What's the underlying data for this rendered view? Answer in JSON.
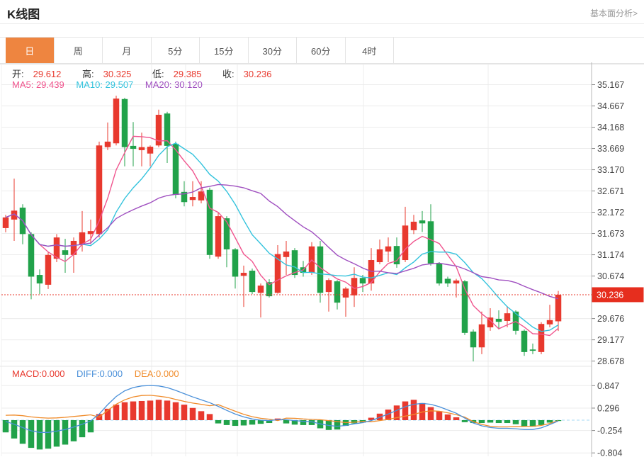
{
  "header": {
    "title": "K线图",
    "link": "基本面分析>"
  },
  "tabs": {
    "items": [
      "日",
      "周",
      "月",
      "5分",
      "15分",
      "30分",
      "60分",
      "4时"
    ],
    "selected": "日",
    "selected_index": 0
  },
  "legend": {
    "open_label": "开:",
    "open_value": "29.612",
    "high_label": "高:",
    "high_value": "30.325",
    "low_label": "低:",
    "low_value": "29.385",
    "close_label": "收:",
    "close_value": "30.236",
    "ma5": "MA5: 29.439",
    "ma10": "MA10: 29.507",
    "ma20": "MA20: 30.120"
  },
  "macd_legend": {
    "macd": "MACD:0.000",
    "diff": "DIFF:0.000",
    "dea": "DEA:0.000"
  },
  "axes": {
    "price_ticks": [
      35.167,
      34.667,
      34.168,
      33.669,
      33.17,
      32.671,
      32.172,
      31.673,
      31.174,
      30.674,
      29.676,
      29.177,
      28.678
    ],
    "current_price": "30.236",
    "macd_ticks": [
      "0.847",
      "0.296",
      "-0.254",
      "-0.804"
    ]
  },
  "colors": {
    "up": "#e8392e",
    "down": "#21a24a",
    "ma5": "#f0558e",
    "ma10": "#33c3dd",
    "ma20": "#a050c0",
    "diff": "#4a90d9",
    "dea": "#f08c2b",
    "tab_accent": "#ee8540",
    "badge": "#e62e1e",
    "grid": "#ececec",
    "axis_border": "#b8b8b8",
    "tick_text": "#444444",
    "zero_dash": "#a6d8f5"
  },
  "chart_data": {
    "type": "candlestick",
    "title": "K线图 (daily)",
    "legend_position": "top-left",
    "grid": true,
    "price_range": [
      28.678,
      35.167
    ],
    "macd_range": [
      -0.804,
      0.847
    ],
    "v_gridlines": [
      214,
      262,
      335,
      513,
      689
    ],
    "ohlc": [
      [
        31.8,
        32.11,
        31.7,
        32.05
      ],
      [
        32.0,
        32.96,
        31.5,
        32.21
      ],
      [
        32.28,
        32.36,
        31.42,
        31.66
      ],
      [
        31.66,
        31.7,
        30.13,
        30.66
      ],
      [
        30.7,
        30.83,
        30.25,
        30.5
      ],
      [
        30.47,
        31.25,
        30.37,
        31.17
      ],
      [
        31.08,
        31.66,
        31.0,
        31.58
      ],
      [
        31.28,
        31.55,
        30.75,
        31.17
      ],
      [
        31.17,
        31.58,
        30.75,
        31.5
      ],
      [
        31.42,
        32.2,
        31.25,
        31.7
      ],
      [
        31.66,
        32.0,
        31.42,
        31.73
      ],
      [
        31.66,
        33.83,
        31.58,
        33.74
      ],
      [
        33.7,
        34.28,
        33.63,
        33.83
      ],
      [
        33.79,
        34.91,
        33.74,
        34.84
      ],
      [
        34.83,
        34.86,
        33.25,
        33.7
      ],
      [
        33.73,
        34.29,
        33.25,
        33.66
      ],
      [
        33.63,
        34.04,
        33.25,
        33.7
      ],
      [
        33.55,
        33.74,
        33.25,
        33.71
      ],
      [
        33.74,
        34.58,
        33.7,
        34.46
      ],
      [
        34.49,
        34.53,
        33.33,
        33.73
      ],
      [
        33.78,
        33.83,
        32.5,
        32.58
      ],
      [
        32.65,
        32.9,
        32.31,
        32.41
      ],
      [
        32.46,
        32.9,
        32.31,
        32.53
      ],
      [
        32.45,
        32.9,
        32.38,
        32.66
      ],
      [
        32.7,
        32.75,
        31.08,
        31.17
      ],
      [
        31.13,
        32.16,
        31.08,
        32.08
      ],
      [
        32.03,
        32.08,
        30.88,
        31.3
      ],
      [
        31.3,
        31.33,
        30.38,
        30.66
      ],
      [
        30.68,
        30.92,
        29.95,
        30.75
      ],
      [
        30.8,
        30.85,
        30.25,
        30.3
      ],
      [
        30.28,
        30.5,
        29.7,
        30.45
      ],
      [
        30.53,
        30.6,
        30.17,
        30.2
      ],
      [
        30.28,
        31.4,
        30.26,
        31.19
      ],
      [
        31.12,
        31.5,
        30.7,
        31.25
      ],
      [
        31.28,
        31.33,
        30.63,
        30.7
      ],
      [
        30.88,
        31.03,
        30.66,
        30.75
      ],
      [
        30.75,
        31.47,
        30.7,
        31.37
      ],
      [
        31.37,
        31.5,
        30.05,
        30.28
      ],
      [
        30.3,
        30.62,
        29.84,
        30.58
      ],
      [
        30.55,
        30.58,
        29.89,
        30.05
      ],
      [
        30.17,
        30.42,
        29.72,
        30.38
      ],
      [
        30.22,
        30.88,
        29.95,
        30.63
      ],
      [
        30.63,
        30.7,
        30.3,
        30.5
      ],
      [
        30.5,
        31.33,
        30.33,
        31.05
      ],
      [
        31.0,
        31.53,
        30.95,
        31.3
      ],
      [
        31.25,
        31.58,
        31.0,
        31.37
      ],
      [
        31.38,
        31.58,
        30.87,
        30.95
      ],
      [
        31.05,
        32.3,
        31.0,
        31.86
      ],
      [
        31.75,
        32.11,
        31.66,
        31.95
      ],
      [
        31.98,
        32.2,
        31.71,
        31.91
      ],
      [
        31.96,
        32.36,
        30.92,
        30.97
      ],
      [
        30.97,
        31.0,
        30.45,
        30.5
      ],
      [
        30.61,
        30.66,
        30.42,
        30.5
      ],
      [
        30.5,
        30.61,
        30.17,
        30.57
      ],
      [
        30.55,
        30.58,
        29.29,
        29.34
      ],
      [
        29.37,
        29.42,
        28.67,
        29.0
      ],
      [
        29.0,
        29.84,
        28.84,
        29.54
      ],
      [
        29.47,
        29.92,
        29.39,
        29.7
      ],
      [
        29.67,
        29.87,
        29.42,
        29.6
      ],
      [
        29.62,
        29.97,
        29.47,
        29.8
      ],
      [
        29.84,
        29.87,
        29.3,
        29.39
      ],
      [
        29.39,
        29.42,
        28.8,
        28.89
      ],
      [
        28.95,
        29.09,
        28.84,
        28.92
      ],
      [
        28.89,
        29.59,
        28.84,
        29.55
      ],
      [
        29.54,
        30.0,
        29.47,
        29.64
      ],
      [
        29.612,
        30.325,
        29.385,
        30.236
      ]
    ],
    "ma_periods": [
      5,
      10,
      20
    ],
    "macd_diff": [
      -0.03,
      -0.1,
      -0.18,
      -0.26,
      -0.3,
      -0.3,
      -0.27,
      -0.23,
      -0.17,
      -0.1,
      -0.02,
      0.15,
      0.38,
      0.58,
      0.72,
      0.8,
      0.84,
      0.85,
      0.84,
      0.8,
      0.73,
      0.65,
      0.57,
      0.5,
      0.43,
      0.34,
      0.24,
      0.15,
      0.08,
      0.03,
      0.0,
      -0.01,
      0.01,
      0.01,
      -0.01,
      -0.03,
      -0.04,
      -0.09,
      -0.13,
      -0.15,
      -0.13,
      -0.09,
      -0.06,
      -0.01,
      0.07,
      0.15,
      0.24,
      0.33,
      0.39,
      0.41,
      0.39,
      0.33,
      0.25,
      0.17,
      0.05,
      -0.07,
      -0.14,
      -0.18,
      -0.2,
      -0.2,
      -0.21,
      -0.23,
      -0.23,
      -0.19,
      -0.11,
      -0.02
    ],
    "macd_hist": [
      -0.3,
      -0.45,
      -0.58,
      -0.68,
      -0.72,
      -0.7,
      -0.65,
      -0.6,
      -0.52,
      -0.42,
      -0.3,
      0.15,
      0.28,
      0.38,
      0.44,
      0.46,
      0.47,
      0.48,
      0.5,
      0.48,
      0.44,
      0.38,
      0.3,
      0.22,
      0.15,
      -0.08,
      -0.12,
      -0.14,
      -0.13,
      -0.11,
      -0.09,
      -0.07,
      0.04,
      -0.08,
      -0.11,
      -0.12,
      -0.12,
      -0.2,
      -0.24,
      -0.23,
      -0.14,
      -0.08,
      -0.06,
      0.06,
      0.16,
      0.26,
      0.36,
      0.46,
      0.5,
      0.42,
      0.32,
      0.22,
      0.14,
      0.07,
      -0.05,
      -0.07,
      -0.07,
      -0.06,
      -0.07,
      -0.07,
      -0.1,
      -0.15,
      -0.16,
      -0.12,
      -0.06,
      -0.02
    ]
  }
}
